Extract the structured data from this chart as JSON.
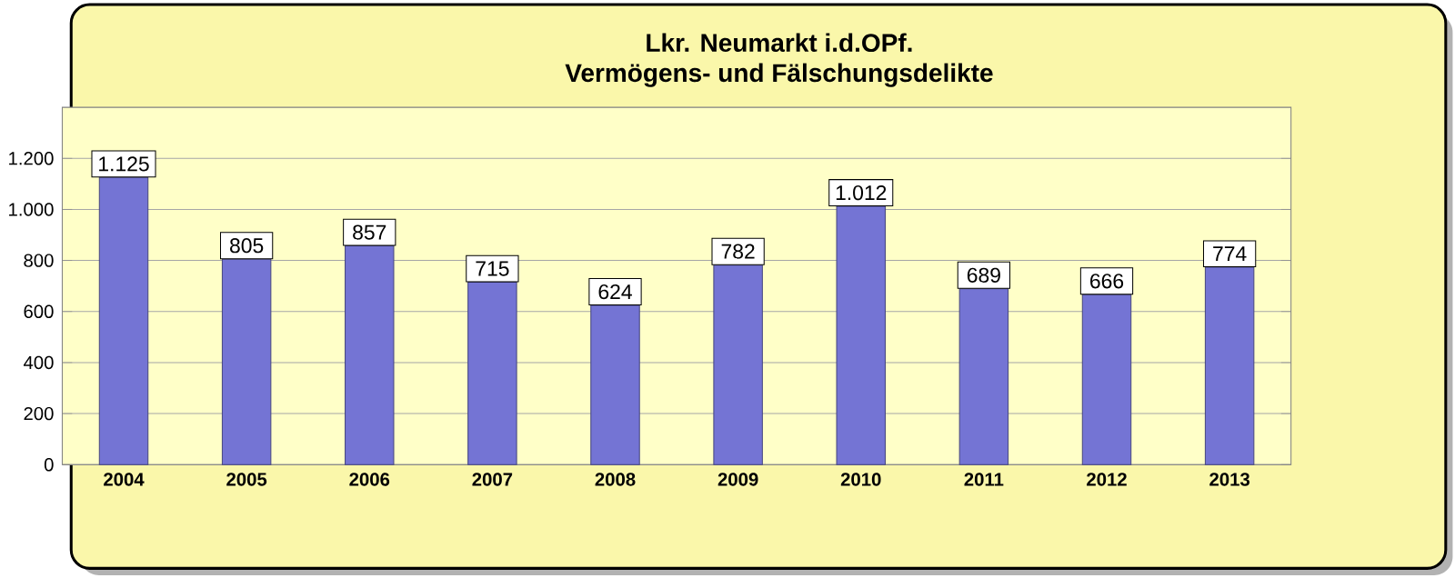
{
  "chart_data": {
    "type": "bar",
    "title": "Lkr. Neumarkt i.d.OPf.",
    "subtitle": "Vermögens- und Fälschungsdelikte",
    "categories": [
      "2004",
      "2005",
      "2006",
      "2007",
      "2008",
      "2009",
      "2010",
      "2011",
      "2012",
      "2013"
    ],
    "values": [
      1125,
      805,
      857,
      715,
      624,
      782,
      1012,
      689,
      666,
      774
    ],
    "value_labels": [
      "1.125",
      "805",
      "857",
      "715",
      "624",
      "782",
      "1.012",
      "689",
      "666",
      "774"
    ],
    "color": "#7474d4",
    "ylim": [
      0,
      1400
    ],
    "yticks": [
      0,
      200,
      400,
      600,
      800,
      {
        "value": 1000,
        "label": "1.000"
      },
      {
        "value": 1200,
        "label": "1.200"
      }
    ],
    "grid": "y"
  }
}
